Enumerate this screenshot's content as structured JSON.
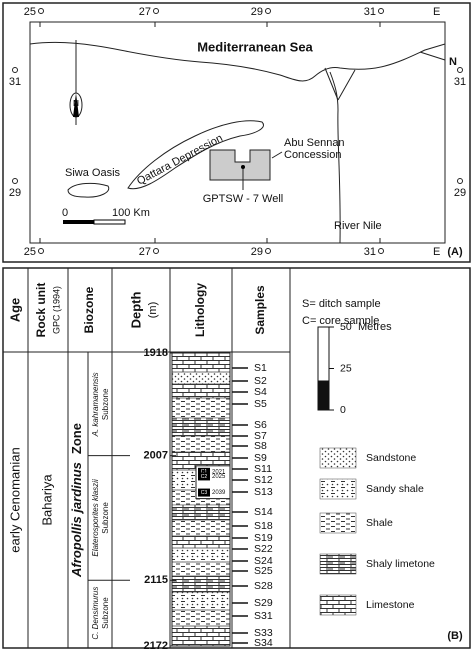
{
  "map": {
    "longitudes": [
      25,
      27,
      29,
      31
    ],
    "east": "E",
    "latitudes": [
      31,
      29
    ],
    "north_label": "N",
    "sea": "Mediterranean Sea",
    "siwa": "Siwa Oasis",
    "qattara": "Qattara Depression",
    "concession": [
      "Abu Sennan",
      "Concession"
    ],
    "well": "GPTSW - 7 Well",
    "river": "River Nile",
    "scale": [
      "0",
      "100 Km"
    ],
    "north_arrow": "N",
    "panel": "(A)"
  },
  "column": {
    "headers": {
      "age": "Age",
      "rock_unit": "Rock unit",
      "reference": "GPC (1994)",
      "biozone": "Biozone",
      "depth": "Depth",
      "depth_unit": "(m)",
      "lithology": "Lithology",
      "samples": "Samples"
    },
    "age": "early Cenomanian",
    "rock_unit": "Bahariya",
    "zone": [
      "Afropollis jardinus",
      "Zone"
    ],
    "subzones": [
      [
        "A. kahramanensis",
        "Subzone"
      ],
      [
        "Elaterosporites klaszii",
        "Subzone"
      ],
      [
        "C. Densimurus",
        "Subzone"
      ]
    ],
    "depths": [
      1918,
      2007,
      2115,
      2172
    ],
    "cores": [
      {
        "name": "C1",
        "depth": 2021
      },
      {
        "name": "C2",
        "depth": 2025
      },
      {
        "name": "C3",
        "depth": 2039
      }
    ],
    "samples": [
      "S1",
      "S2",
      "S4",
      "S5",
      "S6",
      "S7",
      "S8",
      "S9",
      "S11",
      "S12",
      "S13",
      "S14",
      "S18",
      "S19",
      "S22",
      "S24",
      "S25",
      "S28",
      "S29",
      "S31",
      "S33",
      "S34"
    ],
    "legend": {
      "notes": [
        "S= ditch sample",
        "C= core sample"
      ],
      "scale_unit": "Metres",
      "scale_ticks": [
        50,
        25,
        0
      ],
      "lithologies": [
        "Sandstone",
        "Sandy shale",
        "Shale",
        "Shaly limetone",
        "Limestone"
      ]
    },
    "panel": "(B)"
  }
}
